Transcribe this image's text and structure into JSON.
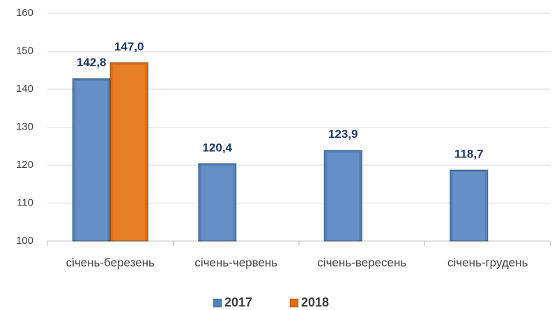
{
  "chart_data": {
    "type": "bar",
    "categories": [
      "січень-березень",
      "січень-червень",
      "січень-вересень",
      "січень-грудень"
    ],
    "series": [
      {
        "name": "2017",
        "color": "#4f81bd",
        "values": [
          142.8,
          120.4,
          123.9,
          118.7
        ],
        "value_labels": [
          "142,8",
          "120,4",
          "123,9",
          "118,7"
        ]
      },
      {
        "name": "2018",
        "color": "#e46c0a",
        "values": [
          147.0,
          null,
          null,
          null
        ],
        "value_labels": [
          "147,0",
          null,
          null,
          null
        ]
      }
    ],
    "ylim": [
      100,
      160
    ],
    "yticks": [
      100,
      110,
      120,
      130,
      140,
      150,
      160
    ],
    "grid": true,
    "legend": "bottom"
  }
}
